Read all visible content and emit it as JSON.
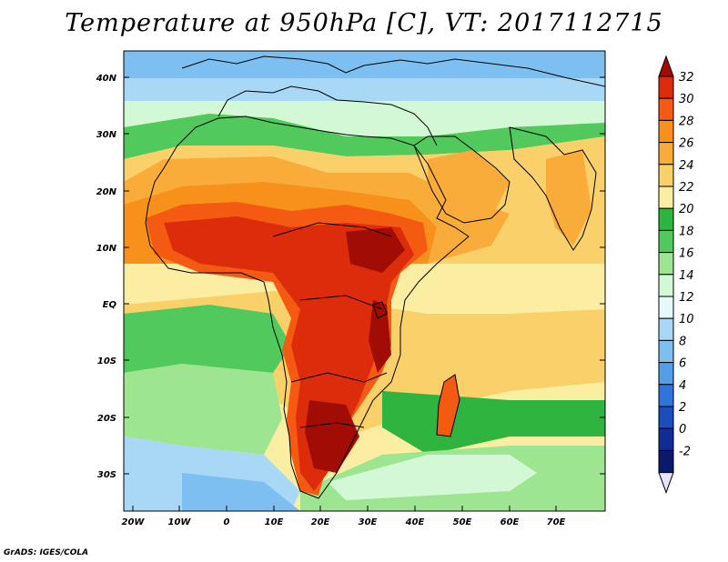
{
  "title": "Temperature at 950hPa [C], VT: 2017112715",
  "credit": "GrADS: IGES/COLA",
  "map": {
    "variable": "Temperature",
    "level": "950hPa",
    "units": "C",
    "valid_time": "2017112715",
    "lat_labels": [
      "40N",
      "30N",
      "20N",
      "10N",
      "EQ",
      "10S",
      "20S",
      "30S"
    ],
    "lon_labels": [
      "20W",
      "10W",
      "0",
      "10E",
      "20E",
      "30E",
      "40E",
      "50E",
      "60E",
      "70E"
    ],
    "lon_range": [
      -22,
      80
    ],
    "lat_range": [
      -37,
      45
    ]
  },
  "colorbar": {
    "labels": [
      "32",
      "30",
      "28",
      "26",
      "24",
      "22",
      "20",
      "18",
      "16",
      "14",
      "12",
      "10",
      "8",
      "6",
      "4",
      "2",
      "0",
      "-2"
    ],
    "colors": [
      "#a10c04",
      "#dc2c0c",
      "#f55a12",
      "#f8911c",
      "#f9ac3a",
      "#f9d06a",
      "#fbeea3",
      "#2fb53f",
      "#52c95c",
      "#9ee592",
      "#d2f8d6",
      "#e6f9fb",
      "#a8d8f6",
      "#7ebff1",
      "#539ee6",
      "#3174dc",
      "#1c4dbd",
      "#102c95",
      "#0a1a6b",
      "#e7e3f8"
    ]
  }
}
